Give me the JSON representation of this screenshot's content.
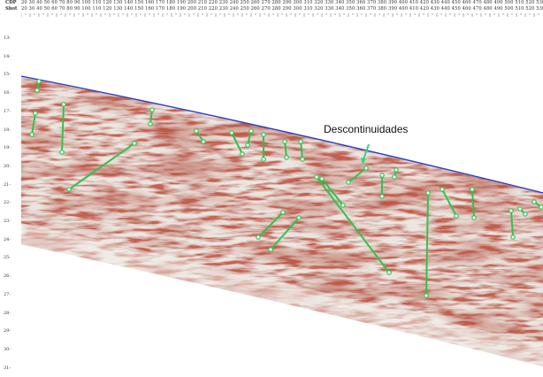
{
  "header": {
    "cdp_label": "CDP",
    "shot_label": "Shot",
    "cdp_values": [
      20,
      30,
      40,
      50,
      60,
      70,
      80,
      90,
      100,
      110,
      120,
      130,
      140,
      150,
      160,
      170,
      180,
      190,
      200,
      210,
      220,
      230,
      240,
      250,
      260,
      270,
      280,
      290,
      300,
      310,
      320,
      330,
      340,
      350,
      360,
      370,
      380,
      390,
      400,
      410,
      420,
      430,
      440,
      450,
      460,
      470,
      480,
      490,
      500,
      510,
      520,
      530
    ],
    "shot_values": [
      20,
      30,
      40,
      50,
      60,
      70,
      80,
      90,
      100,
      110,
      120,
      130,
      140,
      150,
      160,
      170,
      180,
      190,
      200,
      210,
      220,
      230,
      240,
      250,
      260,
      270,
      280,
      290,
      300,
      310,
      320,
      330,
      340,
      350,
      360,
      370,
      380,
      390,
      400,
      410,
      420,
      430,
      440,
      450,
      460,
      470,
      480,
      490,
      500,
      510,
      520,
      530
    ]
  },
  "depth_axis": {
    "labels": [
      "13",
      "14",
      "15",
      "16",
      "17",
      "18",
      "19",
      "20",
      "21",
      "22",
      "23",
      "24",
      "25",
      "26",
      "27",
      "28",
      "29",
      "30",
      "31"
    ]
  },
  "annotation": {
    "text": "Descontinuidades",
    "color": "#3fd17a"
  },
  "colors": {
    "horizon": "#2b3fbf",
    "fault_lines": "#2fc24f",
    "seismic_red": "#8c1e14",
    "seismic_light": "#e9e4de"
  }
}
